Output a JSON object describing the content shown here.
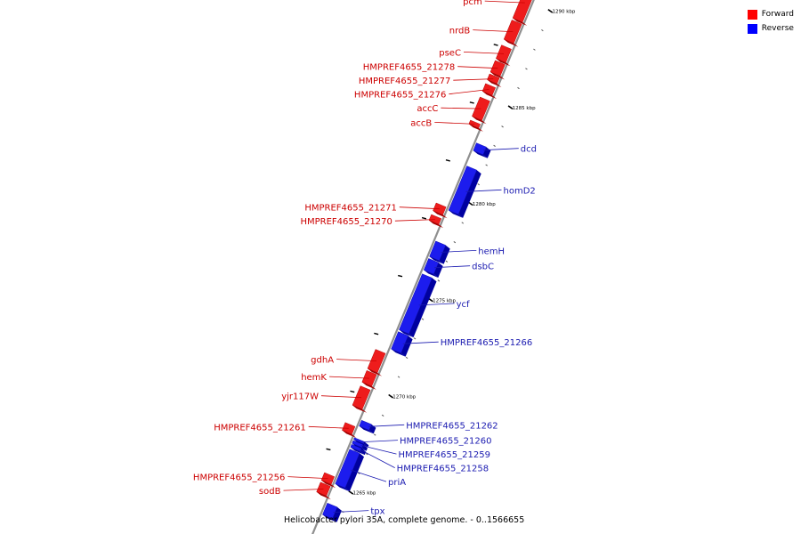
{
  "legend": {
    "forward_label": "Forward",
    "reverse_label": "Reverse",
    "forward_color": "#ff0000",
    "reverse_color": "#0000ff"
  },
  "caption": "Helicobacter pylori 35A, complete genome. - 0..1566655",
  "colors": {
    "forward_fill": "#ee1c1c",
    "forward_side": "#a30000",
    "reverse_fill": "#1c1cee",
    "reverse_side": "#0000a0",
    "axis": "#8f8f8f",
    "forward_label_color": "#cc0000",
    "reverse_label_color": "#1a1ab0"
  },
  "map": {
    "view_range_kbp": [
      1264.2,
      1290.8
    ],
    "scale_label_positions_kbp": [
      1265,
      1270,
      1275,
      1280,
      1285,
      1290
    ],
    "scale_label_suffix": " kbp",
    "genes": [
      {
        "name": "pcm",
        "strand": "forward",
        "start_kbp": 1289.0,
        "end_kbp": 1290.8
      },
      {
        "name": "nrdB",
        "strand": "forward",
        "start_kbp": 1287.9,
        "end_kbp": 1288.9
      },
      {
        "name": "pseC",
        "strand": "forward",
        "start_kbp": 1286.9,
        "end_kbp": 1287.6
      },
      {
        "name": "HMPREF4655_21278",
        "strand": "forward",
        "start_kbp": 1286.2,
        "end_kbp": 1286.8
      },
      {
        "name": "HMPREF4655_21277",
        "strand": "forward",
        "start_kbp": 1285.8,
        "end_kbp": 1286.1
      },
      {
        "name": "HMPREF4655_21276",
        "strand": "forward",
        "start_kbp": 1285.2,
        "end_kbp": 1285.6
      },
      {
        "name": "accC",
        "strand": "forward",
        "start_kbp": 1283.9,
        "end_kbp": 1284.9
      },
      {
        "name": "accB",
        "strand": "forward",
        "start_kbp": 1283.5,
        "end_kbp": 1283.7
      },
      {
        "name": "dcd",
        "strand": "reverse",
        "start_kbp": 1282.4,
        "end_kbp": 1282.8
      },
      {
        "name": "homD2",
        "strand": "reverse",
        "start_kbp": 1279.3,
        "end_kbp": 1281.6
      },
      {
        "name": "HMPREF4655_21271",
        "strand": "forward",
        "start_kbp": 1279.0,
        "end_kbp": 1279.4
      },
      {
        "name": "HMPREF4655_21270",
        "strand": "forward",
        "start_kbp": 1278.5,
        "end_kbp": 1278.8
      },
      {
        "name": "hemH",
        "strand": "reverse",
        "start_kbp": 1276.9,
        "end_kbp": 1277.7
      },
      {
        "name": "dsbC",
        "strand": "reverse",
        "start_kbp": 1276.2,
        "end_kbp": 1276.8
      },
      {
        "name": "ycf",
        "strand": "reverse",
        "start_kbp": 1273.1,
        "end_kbp": 1276.0
      },
      {
        "name": "HMPREF4655_21266",
        "strand": "reverse",
        "start_kbp": 1272.1,
        "end_kbp": 1273.0
      },
      {
        "name": "gdhA",
        "strand": "forward",
        "start_kbp": 1270.8,
        "end_kbp": 1271.8
      },
      {
        "name": "hemK",
        "strand": "forward",
        "start_kbp": 1270.1,
        "end_kbp": 1270.7
      },
      {
        "name": "yjr117W",
        "strand": "forward",
        "start_kbp": 1268.9,
        "end_kbp": 1269.9
      },
      {
        "name": "HMPREF4655_21261",
        "strand": "forward",
        "start_kbp": 1267.6,
        "end_kbp": 1268.0
      },
      {
        "name": "HMPREF4655_21262",
        "strand": "reverse",
        "start_kbp": 1268.1,
        "end_kbp": 1268.4
      },
      {
        "name": "HMPREF4655_21260",
        "strand": "reverse",
        "start_kbp": 1267.4,
        "end_kbp": 1267.5
      },
      {
        "name": "HMPREF4655_21259",
        "strand": "reverse",
        "start_kbp": 1267.2,
        "end_kbp": 1267.35
      },
      {
        "name": "HMPREF4655_21258",
        "strand": "reverse",
        "start_kbp": 1267.0,
        "end_kbp": 1267.15
      },
      {
        "name": "priA",
        "strand": "reverse",
        "start_kbp": 1265.1,
        "end_kbp": 1266.9
      },
      {
        "name": "HMPREF4655_21256",
        "strand": "forward",
        "start_kbp": 1265.0,
        "end_kbp": 1265.4
      },
      {
        "name": "sodB",
        "strand": "forward",
        "start_kbp": 1264.4,
        "end_kbp": 1264.9
      },
      {
        "name": "tpx",
        "strand": "reverse",
        "start_kbp": 1263.5,
        "end_kbp": 1264.1
      }
    ]
  }
}
